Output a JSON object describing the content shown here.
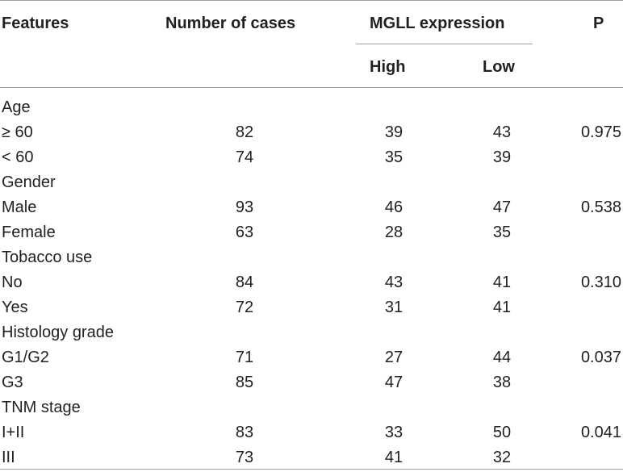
{
  "header": {
    "features": "Features",
    "number_of_cases": "Number of cases",
    "expression": "MGLL expression",
    "p": "P",
    "high": "High",
    "low": "Low"
  },
  "rows": [
    {
      "label": "Age",
      "cases": "",
      "high": "",
      "low": "",
      "p": ""
    },
    {
      "label": "≥ 60",
      "cases": "82",
      "high": "39",
      "low": "43",
      "p": "0.975"
    },
    {
      "label": "< 60",
      "cases": "74",
      "high": "35",
      "low": "39",
      "p": ""
    },
    {
      "label": "Gender",
      "cases": "",
      "high": "",
      "low": "",
      "p": ""
    },
    {
      "label": "Male",
      "cases": "93",
      "high": "46",
      "low": "47",
      "p": "0.538"
    },
    {
      "label": "Female",
      "cases": "63",
      "high": "28",
      "low": "35",
      "p": ""
    },
    {
      "label": "Tobacco use",
      "cases": "",
      "high": "",
      "low": "",
      "p": ""
    },
    {
      "label": "No",
      "cases": "84",
      "high": "43",
      "low": "41",
      "p": "0.310"
    },
    {
      "label": "Yes",
      "cases": "72",
      "high": "31",
      "low": "41",
      "p": ""
    },
    {
      "label": "Histology grade",
      "cases": "",
      "high": "",
      "low": "",
      "p": ""
    },
    {
      "label": "G1/G2",
      "cases": "71",
      "high": "27",
      "low": "44",
      "p": "0.037"
    },
    {
      "label": "G3",
      "cases": "85",
      "high": "47",
      "low": "38",
      "p": ""
    },
    {
      "label": "TNM stage",
      "cases": "",
      "high": "",
      "low": "",
      "p": ""
    },
    {
      "label": "I+II",
      "cases": "83",
      "high": "33",
      "low": "50",
      "p": "0.041"
    },
    {
      "label": "III",
      "cases": "73",
      "high": "41",
      "low": "32",
      "p": ""
    }
  ]
}
